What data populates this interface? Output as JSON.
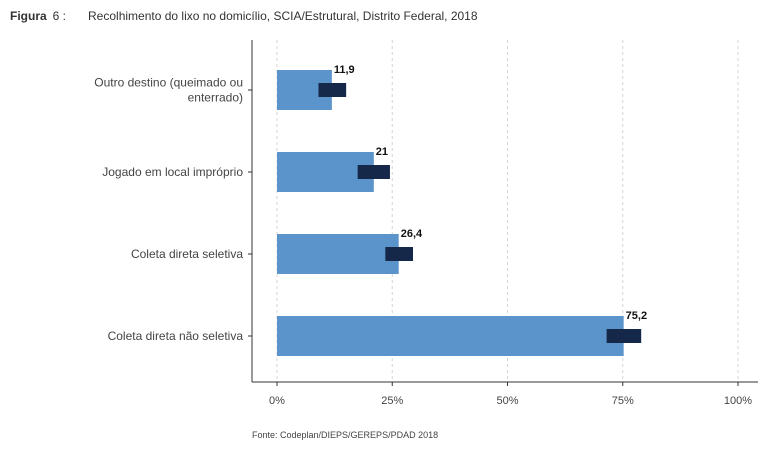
{
  "figure": {
    "label": "Figura",
    "number": "6 :",
    "title": "Recolhimento do lixo no domicílio, SCIA/Estrutural, Distrito Federal, 2018",
    "source": "Fonte: Codeplan/DIEPS/GEREPS/PDAD 2018"
  },
  "colors": {
    "bar": "#5b93cb",
    "ci": "#152849",
    "grid": "#d4d4d4",
    "axis": "#333333"
  },
  "chart_data": {
    "type": "bar",
    "orientation": "horizontal",
    "categories": [
      [
        "Outro destino (queimado ou",
        "enterrado)"
      ],
      [
        "Jogado em local impróprio"
      ],
      [
        "Coleta direta seletiva"
      ],
      [
        "Coleta direta não seletiva"
      ]
    ],
    "values": [
      11.9,
      21,
      26.4,
      75.2
    ],
    "value_labels": [
      "11,9",
      "21",
      "26,4",
      "75,2"
    ],
    "ci": [
      [
        9,
        15
      ],
      [
        17.5,
        24.5
      ],
      [
        23.5,
        29.5
      ],
      [
        71.5,
        79
      ]
    ],
    "xlim": [
      0,
      100
    ],
    "xticks": [
      0,
      25,
      50,
      75,
      100
    ],
    "xtick_labels": [
      "0%",
      "25%",
      "50%",
      "75%",
      "100%"
    ],
    "grid": true
  }
}
